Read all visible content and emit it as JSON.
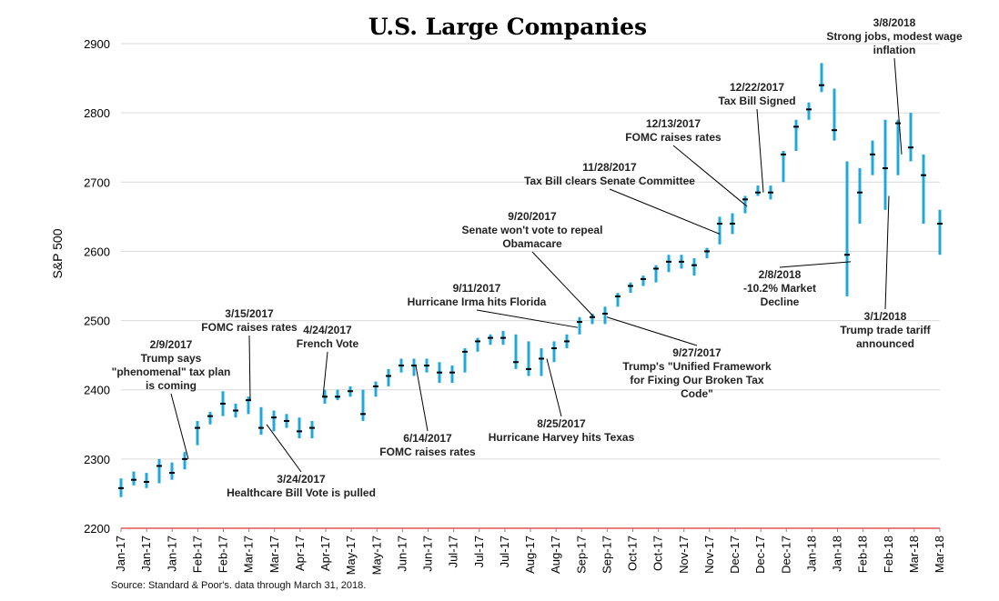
{
  "chart_data": {
    "type": "line",
    "title": "U.S. Large Companies",
    "ylabel": "S&P 500",
    "ylim": [
      2200,
      2900
    ],
    "yticks": [
      2200,
      2300,
      2400,
      2500,
      2600,
      2700,
      2800,
      2900
    ],
    "xlim": [
      "2017-01-03",
      "2018-03-29"
    ],
    "xtick_labels": [
      "Jan-17",
      "Jan-17",
      "Jan-17",
      "Feb-17",
      "Feb-17",
      "Mar-17",
      "Mar-17",
      "Apr-17",
      "Apr-17",
      "May-17",
      "May-17",
      "Jun-17",
      "Jun-17",
      "Jul-17",
      "Jul-17",
      "Jul-17",
      "Aug-17",
      "Aug-17",
      "Sep-17",
      "Sep-17",
      "Oct-17",
      "Oct-17",
      "Nov-17",
      "Nov-17",
      "Dec-17",
      "Dec-17",
      "Dec-17",
      "Jan-18",
      "Jan-18",
      "Feb-18",
      "Feb-18",
      "Mar-18",
      "Mar-18"
    ],
    "grid": "horizontal",
    "colors": {
      "range_bar": "#1fa8e0",
      "close_tick": "#000000",
      "axis_line": "#e03030",
      "gridline": "#d9d9d9"
    },
    "series": [
      {
        "values": [
          {
            "date": "2017-01-03",
            "low": 2245,
            "high": 2272,
            "close": 2258
          },
          {
            "date": "2017-01-10",
            "low": 2262,
            "high": 2282,
            "close": 2270
          },
          {
            "date": "2017-01-17",
            "low": 2258,
            "high": 2280,
            "close": 2267
          },
          {
            "date": "2017-01-24",
            "low": 2265,
            "high": 2300,
            "close": 2290
          },
          {
            "date": "2017-01-31",
            "low": 2270,
            "high": 2295,
            "close": 2280
          },
          {
            "date": "2017-02-07",
            "low": 2285,
            "high": 2310,
            "close": 2300
          },
          {
            "date": "2017-02-14",
            "low": 2320,
            "high": 2355,
            "close": 2345
          },
          {
            "date": "2017-02-21",
            "low": 2350,
            "high": 2368,
            "close": 2362
          },
          {
            "date": "2017-02-28",
            "low": 2362,
            "high": 2398,
            "close": 2380
          },
          {
            "date": "2017-03-07",
            "low": 2360,
            "high": 2380,
            "close": 2370
          },
          {
            "date": "2017-03-14",
            "low": 2365,
            "high": 2390,
            "close": 2385
          },
          {
            "date": "2017-03-21",
            "low": 2335,
            "high": 2375,
            "close": 2345
          },
          {
            "date": "2017-03-28",
            "low": 2340,
            "high": 2370,
            "close": 2360
          },
          {
            "date": "2017-04-04",
            "low": 2345,
            "high": 2365,
            "close": 2355
          },
          {
            "date": "2017-04-11",
            "low": 2330,
            "high": 2360,
            "close": 2340
          },
          {
            "date": "2017-04-18",
            "low": 2330,
            "high": 2355,
            "close": 2345
          },
          {
            "date": "2017-04-25",
            "low": 2380,
            "high": 2400,
            "close": 2390
          },
          {
            "date": "2017-05-02",
            "low": 2385,
            "high": 2400,
            "close": 2390
          },
          {
            "date": "2017-05-09",
            "low": 2390,
            "high": 2405,
            "close": 2398
          },
          {
            "date": "2017-05-16",
            "low": 2355,
            "high": 2400,
            "close": 2365
          },
          {
            "date": "2017-05-23",
            "low": 2390,
            "high": 2412,
            "close": 2405
          },
          {
            "date": "2017-05-30",
            "low": 2405,
            "high": 2430,
            "close": 2420
          },
          {
            "date": "2017-06-06",
            "low": 2425,
            "high": 2445,
            "close": 2435
          },
          {
            "date": "2017-06-13",
            "low": 2420,
            "high": 2445,
            "close": 2435
          },
          {
            "date": "2017-06-20",
            "low": 2425,
            "high": 2445,
            "close": 2435
          },
          {
            "date": "2017-06-27",
            "low": 2410,
            "high": 2440,
            "close": 2425
          },
          {
            "date": "2017-07-04",
            "low": 2410,
            "high": 2435,
            "close": 2425
          },
          {
            "date": "2017-07-11",
            "low": 2425,
            "high": 2460,
            "close": 2455
          },
          {
            "date": "2017-07-18",
            "low": 2455,
            "high": 2475,
            "close": 2470
          },
          {
            "date": "2017-07-25",
            "low": 2465,
            "high": 2480,
            "close": 2475
          },
          {
            "date": "2017-08-01",
            "low": 2465,
            "high": 2485,
            "close": 2475
          },
          {
            "date": "2017-08-08",
            "low": 2430,
            "high": 2480,
            "close": 2440
          },
          {
            "date": "2017-08-15",
            "low": 2420,
            "high": 2470,
            "close": 2430
          },
          {
            "date": "2017-08-22",
            "low": 2420,
            "high": 2460,
            "close": 2445
          },
          {
            "date": "2017-08-29",
            "low": 2440,
            "high": 2470,
            "close": 2460
          },
          {
            "date": "2017-09-05",
            "low": 2460,
            "high": 2480,
            "close": 2470
          },
          {
            "date": "2017-09-12",
            "low": 2480,
            "high": 2505,
            "close": 2498
          },
          {
            "date": "2017-09-19",
            "low": 2495,
            "high": 2510,
            "close": 2505
          },
          {
            "date": "2017-09-26",
            "low": 2495,
            "high": 2520,
            "close": 2510
          },
          {
            "date": "2017-10-03",
            "low": 2520,
            "high": 2540,
            "close": 2535
          },
          {
            "date": "2017-10-10",
            "low": 2540,
            "high": 2555,
            "close": 2550
          },
          {
            "date": "2017-10-17",
            "low": 2550,
            "high": 2565,
            "close": 2560
          },
          {
            "date": "2017-10-24",
            "low": 2555,
            "high": 2580,
            "close": 2575
          },
          {
            "date": "2017-10-31",
            "low": 2570,
            "high": 2595,
            "close": 2585
          },
          {
            "date": "2017-11-07",
            "low": 2575,
            "high": 2595,
            "close": 2585
          },
          {
            "date": "2017-11-14",
            "low": 2565,
            "high": 2590,
            "close": 2580
          },
          {
            "date": "2017-11-21",
            "low": 2590,
            "high": 2605,
            "close": 2600
          },
          {
            "date": "2017-11-28",
            "low": 2610,
            "high": 2650,
            "close": 2640
          },
          {
            "date": "2017-12-05",
            "low": 2625,
            "high": 2655,
            "close": 2640
          },
          {
            "date": "2017-12-12",
            "low": 2655,
            "high": 2680,
            "close": 2675
          },
          {
            "date": "2017-12-19",
            "low": 2680,
            "high": 2695,
            "close": 2685
          },
          {
            "date": "2017-12-26",
            "low": 2675,
            "high": 2695,
            "close": 2685
          },
          {
            "date": "2018-01-02",
            "low": 2700,
            "high": 2745,
            "close": 2740
          },
          {
            "date": "2018-01-09",
            "low": 2745,
            "high": 2790,
            "close": 2780
          },
          {
            "date": "2018-01-16",
            "low": 2790,
            "high": 2815,
            "close": 2805
          },
          {
            "date": "2018-01-23",
            "low": 2830,
            "high": 2872,
            "close": 2840
          },
          {
            "date": "2018-01-30",
            "low": 2760,
            "high": 2835,
            "close": 2775
          },
          {
            "date": "2018-02-06",
            "low": 2535,
            "high": 2730,
            "close": 2595
          },
          {
            "date": "2018-02-13",
            "low": 2640,
            "high": 2720,
            "close": 2685
          },
          {
            "date": "2018-02-20",
            "low": 2710,
            "high": 2760,
            "close": 2740
          },
          {
            "date": "2018-02-27",
            "low": 2660,
            "high": 2790,
            "close": 2720
          },
          {
            "date": "2018-03-06",
            "low": 2710,
            "high": 2790,
            "close": 2785
          },
          {
            "date": "2018-03-13",
            "low": 2730,
            "high": 2800,
            "close": 2750
          },
          {
            "date": "2018-03-20",
            "low": 2640,
            "high": 2740,
            "close": 2710
          },
          {
            "date": "2018-03-29",
            "low": 2595,
            "high": 2660,
            "close": 2640
          }
        ]
      }
    ],
    "annotations": [
      {
        "date": "2017-02-09",
        "y": 2300,
        "lines": [
          "2/9/2017",
          "Trump says",
          "\"phenomenal\" tax plan",
          "is coming"
        ]
      },
      {
        "date": "2017-03-15",
        "y": 2385,
        "lines": [
          "3/15/2017",
          "FOMC raises rates"
        ]
      },
      {
        "date": "2017-03-24",
        "y": 2350,
        "lines": [
          "3/24/2017",
          "Healthcare Bill Vote is pulled"
        ]
      },
      {
        "date": "2017-04-24",
        "y": 2390,
        "lines": [
          "4/24/2017",
          "French Vote"
        ]
      },
      {
        "date": "2017-06-14",
        "y": 2435,
        "lines": [
          "6/14/2017",
          "FOMC raises rates"
        ]
      },
      {
        "date": "2017-08-25",
        "y": 2445,
        "lines": [
          "8/25/2017",
          "Hurricane Harvey hits Texas"
        ]
      },
      {
        "date": "2017-09-11",
        "y": 2490,
        "lines": [
          "9/11/2017",
          "Hurricane Irma hits Florida"
        ]
      },
      {
        "date": "2017-09-20",
        "y": 2505,
        "lines": [
          "9/20/2017",
          "Senate won't vote to repeal",
          "Obamacare"
        ]
      },
      {
        "date": "2017-09-27",
        "y": 2505,
        "lines": [
          "9/27/2017",
          "Trump's \"Unified Framework",
          "for Fixing Our Broken Tax",
          "Code\""
        ]
      },
      {
        "date": "2017-11-28",
        "y": 2625,
        "lines": [
          "11/28/2017",
          "Tax Bill clears Senate Committee"
        ]
      },
      {
        "date": "2017-12-13",
        "y": 2665,
        "lines": [
          "12/13/2017",
          "FOMC raises rates"
        ]
      },
      {
        "date": "2017-12-22",
        "y": 2685,
        "lines": [
          "12/22/2017",
          "Tax Bill Signed"
        ]
      },
      {
        "date": "2018-02-08",
        "y": 2585,
        "lines": [
          "2/8/2018",
          "-10.2% Market",
          "Decline"
        ]
      },
      {
        "date": "2018-03-01",
        "y": 2680,
        "lines": [
          "3/1/2018",
          "Trump trade tariff",
          "announced"
        ]
      },
      {
        "date": "2018-03-08",
        "y": 2740,
        "lines": [
          "3/8/2018",
          "Strong jobs, modest wage",
          "inflation"
        ]
      }
    ]
  },
  "source": "Source: Standard & Poor's. data through March 31, 2018."
}
